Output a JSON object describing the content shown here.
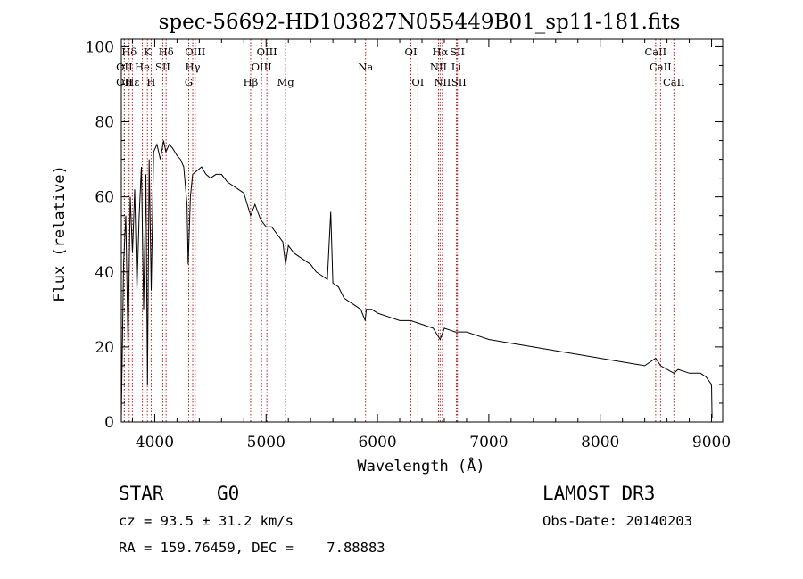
{
  "chart_data": {
    "type": "line",
    "title": "spec-56692-HD103827N055449B01_sp11-181.fits",
    "xlabel": "Wavelength (Å)",
    "ylabel": "Flux (relative)",
    "xlim": [
      3700,
      9100
    ],
    "ylim": [
      0,
      102
    ],
    "xticks": [
      4000,
      5000,
      6000,
      7000,
      8000,
      9000
    ],
    "yticks": [
      0,
      20,
      40,
      60,
      80,
      100
    ],
    "series": [
      {
        "name": "flux",
        "color": "#000000",
        "x": [
          3700,
          3720,
          3740,
          3760,
          3780,
          3800,
          3820,
          3840,
          3860,
          3880,
          3900,
          3920,
          3935,
          3950,
          3968,
          3990,
          4020,
          4050,
          4080,
          4100,
          4130,
          4160,
          4200,
          4230,
          4260,
          4290,
          4300,
          4320,
          4340,
          4380,
          4420,
          4460,
          4500,
          4550,
          4600,
          4650,
          4700,
          4750,
          4800,
          4861,
          4900,
          4950,
          5000,
          5050,
          5100,
          5150,
          5175,
          5200,
          5250,
          5300,
          5350,
          5400,
          5450,
          5500,
          5550,
          5580,
          5600,
          5650,
          5700,
          5750,
          5800,
          5850,
          5890,
          5900,
          5950,
          6000,
          6100,
          6200,
          6300,
          6400,
          6500,
          6563,
          6600,
          6700,
          6800,
          6900,
          7000,
          7200,
          7400,
          7600,
          7800,
          8000,
          8200,
          8400,
          8498,
          8542,
          8600,
          8662,
          8700,
          8800,
          8900,
          8950,
          9000,
          9005
        ],
        "y": [
          1,
          42,
          55,
          20,
          60,
          45,
          62,
          35,
          55,
          68,
          30,
          66,
          10,
          70,
          35,
          72,
          74,
          70,
          75,
          72,
          74,
          73,
          71,
          70,
          68,
          58,
          42,
          60,
          66,
          67,
          68,
          66,
          65,
          66,
          66,
          64,
          63,
          62,
          61,
          55,
          58,
          54,
          52,
          52,
          50,
          48,
          42,
          47,
          45,
          44,
          43,
          42,
          40,
          39,
          38,
          56,
          37,
          36,
          33,
          32,
          31,
          30,
          27,
          30,
          30,
          29,
          28,
          27,
          27,
          26,
          25,
          22,
          25,
          24,
          24,
          23,
          22,
          21,
          20,
          19,
          18,
          17,
          16,
          15,
          17,
          15,
          14,
          13,
          14,
          13,
          13,
          12,
          10,
          1
        ]
      }
    ],
    "line_markers": [
      {
        "label": "Hδ",
        "x": 3770,
        "row": 1
      },
      {
        "label": "K",
        "x": 3934,
        "row": 1
      },
      {
        "label": "Hδ",
        "x": 4102,
        "row": 1
      },
      {
        "label": "OIII",
        "x": 4363,
        "row": 1
      },
      {
        "label": "OIII",
        "x": 5007,
        "row": 1
      },
      {
        "label": "OI",
        "x": 6300,
        "row": 1
      },
      {
        "label": "Hα",
        "x": 6563,
        "row": 1
      },
      {
        "label": "SII",
        "x": 6717,
        "row": 1
      },
      {
        "label": "CaII",
        "x": 8498,
        "row": 1
      },
      {
        "label": "OII",
        "x": 3727,
        "row": 2
      },
      {
        "label": "He",
        "x": 3889,
        "row": 2
      },
      {
        "label": "SII",
        "x": 4072,
        "row": 2
      },
      {
        "label": "Hγ",
        "x": 4341,
        "row": 2
      },
      {
        "label": "OIII",
        "x": 4959,
        "row": 2
      },
      {
        "label": "Na",
        "x": 5893,
        "row": 2
      },
      {
        "label": "NII",
        "x": 6548,
        "row": 2
      },
      {
        "label": "Li",
        "x": 6708,
        "row": 2
      },
      {
        "label": "CaII",
        "x": 8542,
        "row": 2
      },
      {
        "label": "OII",
        "x": 3727,
        "row": 3
      },
      {
        "label": "Hε",
        "x": 3799,
        "row": 3
      },
      {
        "label": "H",
        "x": 3968,
        "row": 3
      },
      {
        "label": "G",
        "x": 4305,
        "row": 3
      },
      {
        "label": "Hβ",
        "x": 4861,
        "row": 3
      },
      {
        "label": "Mg",
        "x": 5175,
        "row": 3
      },
      {
        "label": "OI",
        "x": 6363,
        "row": 3
      },
      {
        "label": "NII",
        "x": 6583,
        "row": 3
      },
      {
        "label": "SII",
        "x": 6731,
        "row": 3
      },
      {
        "label": "CaII",
        "x": 8662,
        "row": 3
      }
    ],
    "grid": false
  },
  "info": {
    "class_type": "STAR",
    "subclass": "G0",
    "survey": "LAMOST DR3",
    "cz": "cz = 93.5 ± 31.2 km/s",
    "obs_date": "Obs-Date: 20140203",
    "coords": "RA = 159.76459, DEC =    7.88883"
  }
}
